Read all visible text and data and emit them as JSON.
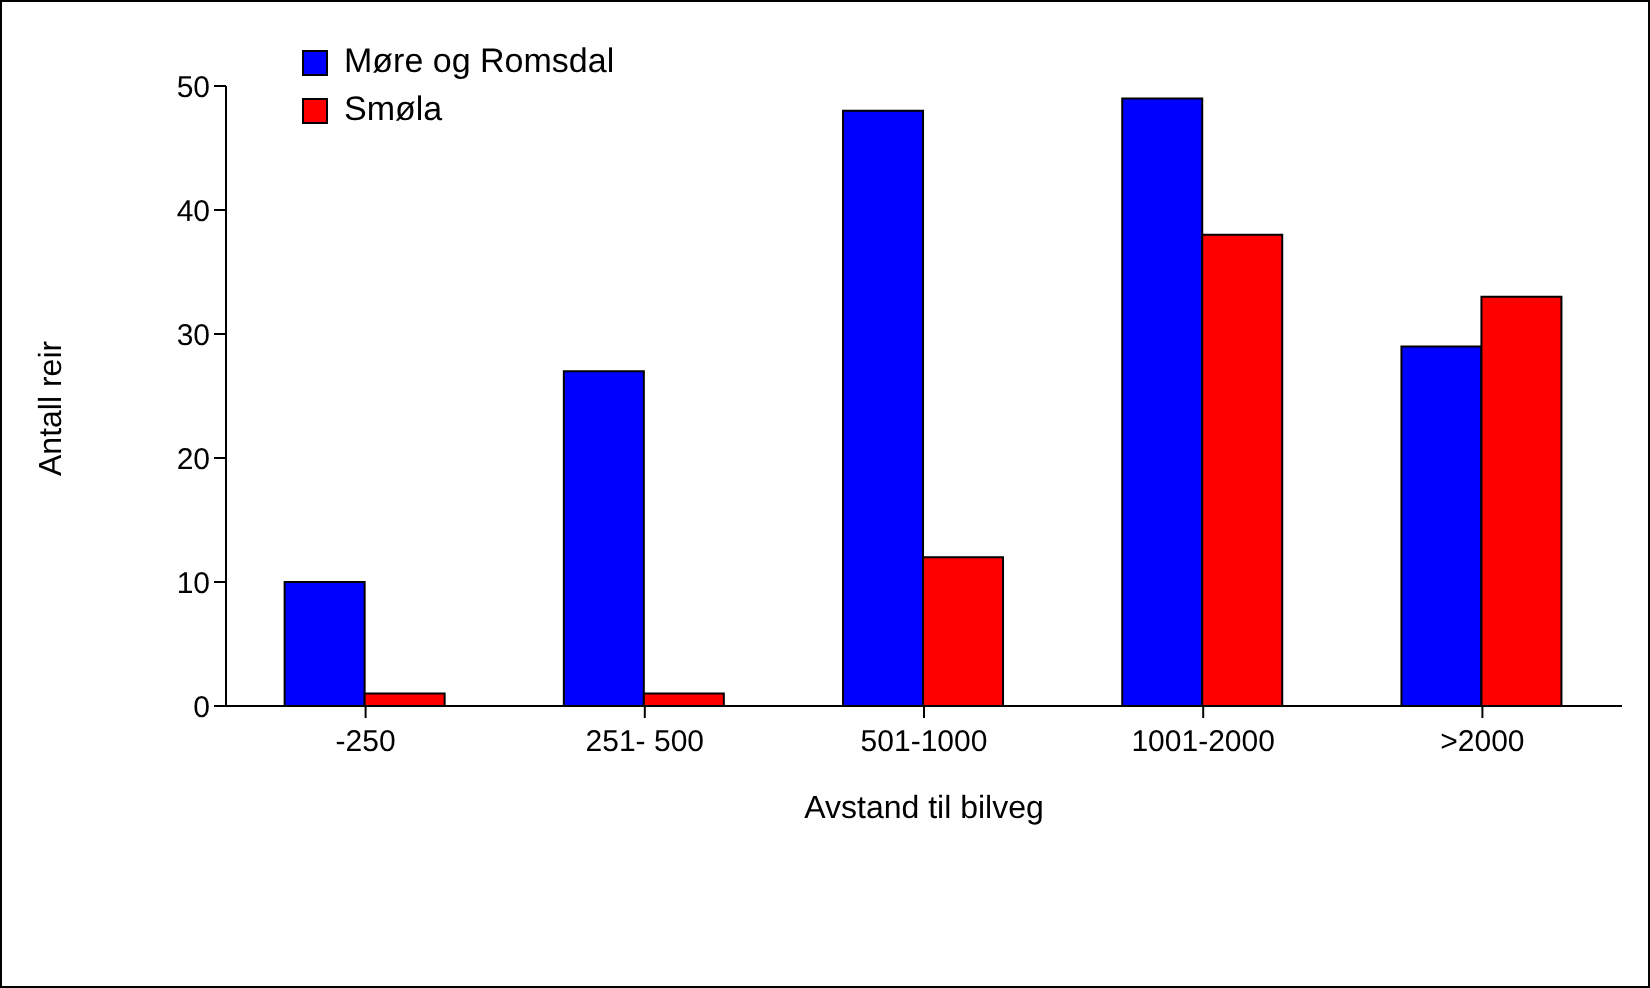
{
  "chart_data": {
    "type": "bar",
    "xlabel": "Avstand til bilveg",
    "ylabel": "Antall reir",
    "categories": [
      "-250",
      "251- 500",
      "501-1000",
      "1001-2000",
      ">2000"
    ],
    "series": [
      {
        "name": "Møre og Romsdal",
        "color": "#0000ff",
        "values": [
          10,
          27,
          48,
          49,
          29
        ]
      },
      {
        "name": "Smøla",
        "color": "#ff0000",
        "values": [
          1,
          1,
          12,
          38,
          33
        ]
      }
    ],
    "ylim": [
      0,
      50
    ],
    "yticks": [
      0,
      10,
      20,
      30,
      40,
      50
    ],
    "grid": false,
    "legend": "top left"
  }
}
